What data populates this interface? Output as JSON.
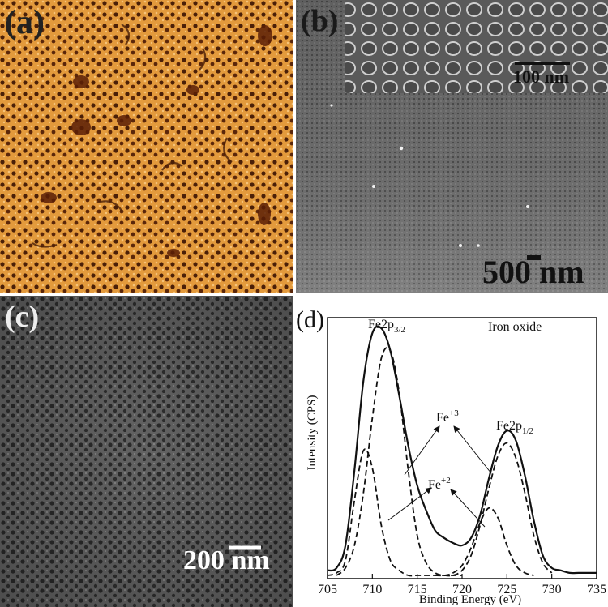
{
  "panels": {
    "a": {
      "letter": "(a)"
    },
    "b": {
      "letter": "(b)",
      "scale_main": "500 nm",
      "scale_inset": "100 nm"
    },
    "c": {
      "letter": "(c)",
      "scale": "200 nm"
    },
    "d": {
      "letter": "(d)"
    }
  },
  "colors": {
    "afm_background": "#e39a3c",
    "afm_pore": "#4a1f08",
    "sem_gray": "#6b6b6b"
  },
  "chart_data": {
    "type": "line",
    "title": "Iron oxide",
    "xlabel": "Binding Energy (eV)",
    "ylabel": "Intensity (CPS)",
    "xlim": [
      705,
      735
    ],
    "xticks": [
      705,
      710,
      715,
      720,
      725,
      730,
      735
    ],
    "ylim": [
      0,
      1
    ],
    "grid": false,
    "annotations": {
      "fe2p32": {
        "main": "Fe2p",
        "sub": "3/2"
      },
      "fe2p12": {
        "main": "Fe2p",
        "sub": "1/2"
      },
      "fe3": {
        "main": "Fe",
        "sup": "+3"
      },
      "fe2": {
        "main": "Fe",
        "sup": "+2"
      }
    },
    "series": [
      {
        "style": "solid",
        "x": [
          705,
          706,
          707,
          708,
          709,
          710,
          711,
          712,
          713,
          714,
          715,
          716,
          717,
          718,
          719,
          720,
          721,
          722,
          723,
          724,
          725,
          726,
          727,
          728,
          729,
          730,
          731,
          732,
          733,
          734,
          735
        ],
        "y": [
          0.02,
          0.03,
          0.12,
          0.42,
          0.78,
          0.97,
          0.99,
          0.9,
          0.72,
          0.52,
          0.36,
          0.26,
          0.18,
          0.15,
          0.13,
          0.12,
          0.15,
          0.24,
          0.39,
          0.52,
          0.58,
          0.54,
          0.4,
          0.22,
          0.08,
          0.03,
          0.02,
          0.01,
          0.01,
          0.01,
          0.01
        ]
      },
      {
        "style": "dashed",
        "x": [
          705,
          706,
          707,
          708,
          709,
          710,
          711,
          712,
          713,
          714,
          715,
          716,
          717,
          718,
          719,
          720
        ],
        "y": [
          0.0,
          0.01,
          0.06,
          0.3,
          0.5,
          0.43,
          0.2,
          0.06,
          0.02,
          0.0,
          0.0,
          0.0,
          0.0,
          0.0,
          0.0,
          0.0
        ]
      },
      {
        "style": "dashed",
        "x": [
          706,
          707,
          708,
          709,
          710,
          711,
          712,
          713,
          714,
          715,
          716,
          717,
          718,
          719
        ],
        "y": [
          0.0,
          0.03,
          0.12,
          0.33,
          0.63,
          0.87,
          0.9,
          0.73,
          0.42,
          0.16,
          0.05,
          0.01,
          0.0,
          0.0
        ]
      },
      {
        "style": "dashed",
        "x": [
          717,
          718,
          719,
          720,
          721,
          722,
          723,
          724,
          725,
          726,
          727,
          728
        ],
        "y": [
          0.0,
          0.0,
          0.01,
          0.04,
          0.11,
          0.21,
          0.27,
          0.23,
          0.12,
          0.04,
          0.01,
          0.0
        ]
      },
      {
        "style": "dashed",
        "x": [
          718,
          719,
          720,
          721,
          722,
          723,
          724,
          725,
          726,
          727,
          728,
          729,
          730
        ],
        "y": [
          0.0,
          0.0,
          0.02,
          0.08,
          0.2,
          0.35,
          0.48,
          0.53,
          0.47,
          0.33,
          0.16,
          0.05,
          0.01
        ]
      }
    ]
  }
}
